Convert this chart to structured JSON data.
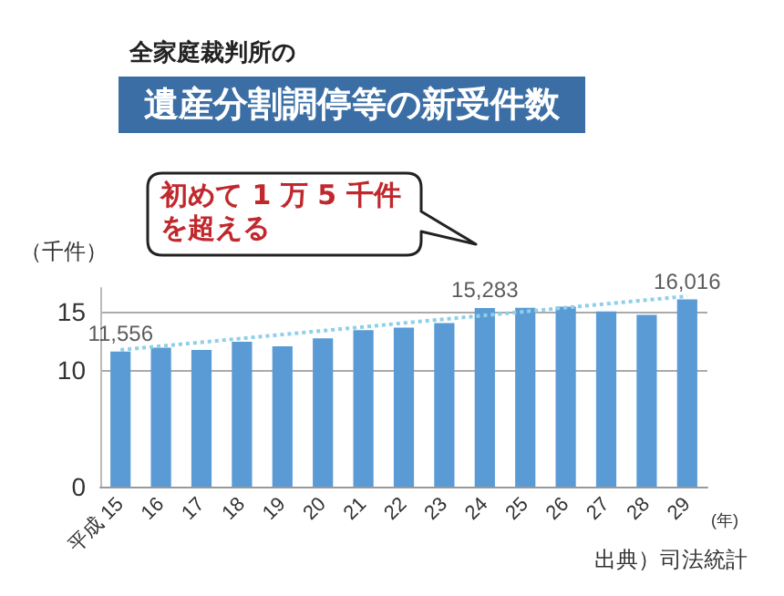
{
  "chart_data": {
    "type": "bar",
    "subtitle": "全家庭裁判所の",
    "title": "遺産分割調停等の新受件数",
    "ylabel": "（千件）",
    "xlabel": "(年)",
    "categories": [
      "平成 15",
      "16",
      "17",
      "18",
      "19",
      "20",
      "21",
      "22",
      "23",
      "24",
      "25",
      "26",
      "27",
      "28",
      "29"
    ],
    "series": [
      {
        "color": "#5b9bd5",
        "values": [
          11.556,
          11.9,
          11.7,
          12.4,
          12.0,
          12.7,
          13.4,
          13.6,
          14.0,
          15.283,
          15.3,
          15.4,
          15.0,
          14.7,
          16.016
        ]
      },
      {
        "type": "line",
        "color": "#8fd0e8",
        "line_style": "dotted",
        "marker": "none",
        "x": [
          "平成 15",
          "29"
        ],
        "values": [
          11.7,
          16.3
        ]
      }
    ],
    "ylim": [
      0,
      17
    ],
    "yticks": [
      0,
      10,
      15
    ],
    "grid": "y",
    "annotations": [
      "初めて 1 万 5 千件を超える",
      "出典）司法統計",
      {
        "text": "11,556",
        "x": "平成 15",
        "y": 11.556
      },
      {
        "text": "15,283",
        "x": "24",
        "y": 15.283
      },
      {
        "text": "16,016",
        "x": "29",
        "y": 16.016
      }
    ]
  }
}
